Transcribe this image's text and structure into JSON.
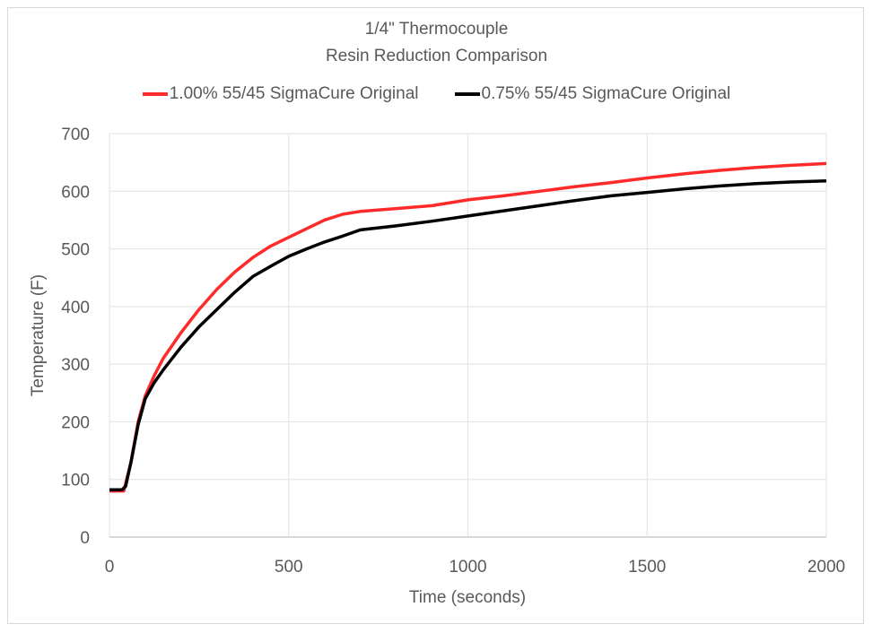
{
  "chart_data": {
    "type": "line",
    "title": "1/4\" Thermocouple",
    "subtitle": "Resin Reduction Comparison",
    "xlabel": "Time (seconds)",
    "ylabel": "Temperature (F)",
    "xlim": [
      0,
      2000
    ],
    "ylim": [
      0,
      700
    ],
    "xticks": [
      0,
      500,
      1000,
      1500,
      2000
    ],
    "yticks": [
      0,
      100,
      200,
      300,
      400,
      500,
      600,
      700
    ],
    "grid": true,
    "legend_position": "top",
    "series": [
      {
        "name": "1.00% 55/45 SigmaCure Original",
        "color": "#ff2a2a",
        "x": [
          0,
          40,
          60,
          80,
          100,
          125,
          150,
          200,
          250,
          300,
          350,
          400,
          450,
          500,
          550,
          600,
          650,
          700,
          800,
          900,
          1000,
          1100,
          1200,
          1300,
          1400,
          1500,
          1600,
          1700,
          1800,
          1900,
          2000
        ],
        "y": [
          80,
          80,
          130,
          200,
          245,
          280,
          310,
          355,
          395,
          430,
          460,
          485,
          505,
          520,
          535,
          550,
          560,
          565,
          570,
          575,
          585,
          592,
          600,
          608,
          615,
          623,
          630,
          636,
          641,
          645,
          648
        ]
      },
      {
        "name": "0.75% 55/45 SigmaCure Original",
        "color": "#000000",
        "x": [
          0,
          35,
          45,
          60,
          80,
          100,
          125,
          150,
          200,
          250,
          300,
          350,
          400,
          450,
          500,
          550,
          600,
          650,
          700,
          800,
          900,
          1000,
          1100,
          1200,
          1300,
          1400,
          1500,
          1600,
          1700,
          1800,
          1900,
          2000
        ],
        "y": [
          82,
          82,
          88,
          130,
          195,
          240,
          268,
          290,
          330,
          365,
          395,
          425,
          452,
          470,
          487,
          500,
          512,
          522,
          533,
          540,
          548,
          557,
          566,
          575,
          584,
          592,
          598,
          604,
          609,
          613,
          616,
          618
        ]
      }
    ]
  }
}
